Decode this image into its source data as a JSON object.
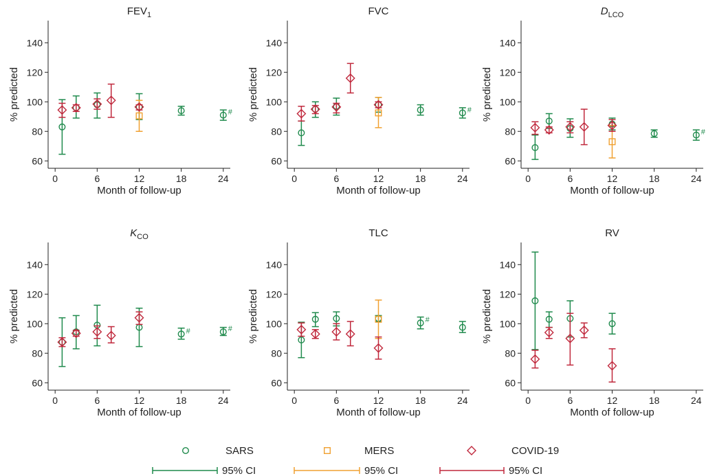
{
  "colors": {
    "SARS": "#1f8a4c",
    "MERS": "#f0a030",
    "COVID-19": "#c0283c",
    "axis": "#222222"
  },
  "legend": {
    "series": [
      "SARS",
      "MERS",
      "COVID-19"
    ],
    "ci_label": "95% CI"
  },
  "chart_data": [
    {
      "type": "scatter",
      "title": "FEV1",
      "title_main": "FEV",
      "title_sub": "1",
      "title_italic": false,
      "xlabel": "Month of follow-up",
      "ylabel": "% predicted",
      "xlim": [
        -1,
        25
      ],
      "ylim": [
        55,
        155
      ],
      "xticks": [
        0,
        6,
        12,
        18,
        24
      ],
      "yticks": [
        60,
        80,
        100,
        120,
        140
      ],
      "series": [
        {
          "name": "SARS",
          "marker": "circle",
          "points": [
            {
              "x": 1,
              "y": 83,
              "lo": 64.5,
              "hi": 101.5
            },
            {
              "x": 3,
              "y": 96,
              "lo": 89,
              "hi": 104
            },
            {
              "x": 6,
              "y": 98,
              "lo": 89,
              "hi": 106
            },
            {
              "x": 12,
              "y": 96.5,
              "lo": 88,
              "hi": 105.5
            },
            {
              "x": 18,
              "y": 94,
              "lo": 91,
              "hi": 97
            },
            {
              "x": 24,
              "y": 91,
              "lo": 87.5,
              "hi": 94.5,
              "note": "#"
            }
          ]
        },
        {
          "name": "MERS",
          "marker": "square",
          "points": [
            {
              "x": 12,
              "y": 90.5,
              "lo": 80,
              "hi": 101
            }
          ]
        },
        {
          "name": "COVID-19",
          "marker": "diamond",
          "points": [
            {
              "x": 1,
              "y": 94.5,
              "lo": 89.5,
              "hi": 99
            },
            {
              "x": 3,
              "y": 96,
              "lo": 93.5,
              "hi": 98
            },
            {
              "x": 6,
              "y": 98.5,
              "lo": 95,
              "hi": 102
            },
            {
              "x": 8,
              "y": 101,
              "lo": 89.5,
              "hi": 112
            },
            {
              "x": 12,
              "y": 96.5,
              "lo": 94.5,
              "hi": 98
            }
          ]
        }
      ]
    },
    {
      "type": "scatter",
      "title": "FVC",
      "title_main": "FVC",
      "title_sub": "",
      "title_italic": false,
      "xlabel": "Month of follow-up",
      "ylabel": "% predicted",
      "xlim": [
        -1,
        25
      ],
      "ylim": [
        55,
        155
      ],
      "xticks": [
        0,
        6,
        12,
        18,
        24
      ],
      "yticks": [
        60,
        80,
        100,
        120,
        140
      ],
      "series": [
        {
          "name": "SARS",
          "marker": "circle",
          "points": [
            {
              "x": 1,
              "y": 79,
              "lo": 70.5,
              "hi": 87
            },
            {
              "x": 3,
              "y": 95,
              "lo": 89.5,
              "hi": 100
            },
            {
              "x": 6,
              "y": 97,
              "lo": 91,
              "hi": 102.5
            },
            {
              "x": 12,
              "y": 98,
              "lo": 93,
              "hi": 103
            },
            {
              "x": 18,
              "y": 94.5,
              "lo": 91,
              "hi": 98
            },
            {
              "x": 24,
              "y": 92.5,
              "lo": 89,
              "hi": 96,
              "note": "#"
            }
          ]
        },
        {
          "name": "MERS",
          "marker": "square",
          "points": [
            {
              "x": 12,
              "y": 92.5,
              "lo": 82.5,
              "hi": 103
            }
          ]
        },
        {
          "name": "COVID-19",
          "marker": "diamond",
          "points": [
            {
              "x": 1,
              "y": 92,
              "lo": 87,
              "hi": 97
            },
            {
              "x": 3,
              "y": 95,
              "lo": 92,
              "hi": 97.5
            },
            {
              "x": 6,
              "y": 96.5,
              "lo": 92.5,
              "hi": 99
            },
            {
              "x": 8,
              "y": 116,
              "lo": 106,
              "hi": 126
            },
            {
              "x": 12,
              "y": 98,
              "lo": 96,
              "hi": 100
            }
          ]
        }
      ]
    },
    {
      "type": "scatter",
      "title": "DLCO",
      "title_main": "D",
      "title_sub": "LCO",
      "title_italic": true,
      "xlabel": "Month of follow-up",
      "ylabel": "% predicted",
      "xlim": [
        -1,
        25
      ],
      "ylim": [
        55,
        155
      ],
      "xticks": [
        0,
        6,
        12,
        18,
        24
      ],
      "yticks": [
        60,
        80,
        100,
        120,
        140
      ],
      "series": [
        {
          "name": "SARS",
          "marker": "circle",
          "points": [
            {
              "x": 1,
              "y": 69,
              "lo": 61,
              "hi": 77.5
            },
            {
              "x": 3,
              "y": 87,
              "lo": 82,
              "hi": 92
            },
            {
              "x": 6,
              "y": 82,
              "lo": 76,
              "hi": 88.5
            },
            {
              "x": 12,
              "y": 85,
              "lo": 81,
              "hi": 89
            },
            {
              "x": 18,
              "y": 78.5,
              "lo": 76,
              "hi": 81
            },
            {
              "x": 24,
              "y": 77.5,
              "lo": 74,
              "hi": 81,
              "note": "#"
            }
          ]
        },
        {
          "name": "MERS",
          "marker": "square",
          "points": [
            {
              "x": 12,
              "y": 73,
              "lo": 62,
              "hi": 84
            }
          ]
        },
        {
          "name": "COVID-19",
          "marker": "diamond",
          "points": [
            {
              "x": 1,
              "y": 82.5,
              "lo": 78,
              "hi": 86.5
            },
            {
              "x": 3,
              "y": 81,
              "lo": 79,
              "hi": 83
            },
            {
              "x": 6,
              "y": 83,
              "lo": 79,
              "hi": 86.5
            },
            {
              "x": 8,
              "y": 83,
              "lo": 71,
              "hi": 95
            },
            {
              "x": 12,
              "y": 84,
              "lo": 80,
              "hi": 88
            }
          ]
        }
      ]
    },
    {
      "type": "scatter",
      "title": "KCO",
      "title_main": "K",
      "title_sub": "CO",
      "title_italic": true,
      "xlabel": "Month of follow-up",
      "ylabel": "% predicted",
      "xlim": [
        -1,
        25
      ],
      "ylim": [
        55,
        155
      ],
      "xticks": [
        0,
        6,
        12,
        18,
        24
      ],
      "yticks": [
        60,
        80,
        100,
        120,
        140
      ],
      "series": [
        {
          "name": "SARS",
          "marker": "circle",
          "points": [
            {
              "x": 1,
              "y": 87.5,
              "lo": 71,
              "hi": 104
            },
            {
              "x": 3,
              "y": 94.5,
              "lo": 83,
              "hi": 105.5
            },
            {
              "x": 6,
              "y": 99,
              "lo": 85,
              "hi": 112.5
            },
            {
              "x": 12,
              "y": 97.5,
              "lo": 84.5,
              "hi": 110.5
            },
            {
              "x": 18,
              "y": 93,
              "lo": 89.5,
              "hi": 97,
              "note": "#"
            },
            {
              "x": 24,
              "y": 94.5,
              "lo": 92,
              "hi": 97.5,
              "note": "#"
            }
          ]
        },
        {
          "name": "COVID-19",
          "marker": "diamond",
          "points": [
            {
              "x": 1,
              "y": 87.5,
              "lo": 84.5,
              "hi": 90.5
            },
            {
              "x": 3,
              "y": 93.5,
              "lo": 91.5,
              "hi": 95.5
            },
            {
              "x": 6,
              "y": 94.5,
              "lo": 90,
              "hi": 98.5
            },
            {
              "x": 8,
              "y": 92,
              "lo": 87,
              "hi": 98
            },
            {
              "x": 12,
              "y": 104,
              "lo": 99.5,
              "hi": 108
            }
          ]
        }
      ]
    },
    {
      "type": "scatter",
      "title": "TLC",
      "title_main": "TLC",
      "title_sub": "",
      "title_italic": false,
      "xlabel": "Month of follow-up",
      "ylabel": "% predicted",
      "xlim": [
        -1,
        25
      ],
      "ylim": [
        55,
        155
      ],
      "xticks": [
        0,
        6,
        12,
        18,
        24
      ],
      "yticks": [
        60,
        80,
        100,
        120,
        140
      ],
      "series": [
        {
          "name": "SARS",
          "marker": "circle",
          "points": [
            {
              "x": 1,
              "y": 89,
              "lo": 77,
              "hi": 101
            },
            {
              "x": 3,
              "y": 103,
              "lo": 98,
              "hi": 107.5
            },
            {
              "x": 6,
              "y": 103.5,
              "lo": 98.5,
              "hi": 108
            },
            {
              "x": 12,
              "y": 103.5,
              "lo": 101.5,
              "hi": 105.5
            },
            {
              "x": 18,
              "y": 100.5,
              "lo": 96.5,
              "hi": 104.5,
              "note": "#"
            },
            {
              "x": 24,
              "y": 97.5,
              "lo": 94,
              "hi": 101.5
            }
          ]
        },
        {
          "name": "MERS",
          "marker": "square",
          "points": [
            {
              "x": 12,
              "y": 103,
              "lo": 90,
              "hi": 116
            }
          ]
        },
        {
          "name": "COVID-19",
          "marker": "diamond",
          "points": [
            {
              "x": 1,
              "y": 96,
              "lo": 91.5,
              "hi": 100.5
            },
            {
              "x": 3,
              "y": 93,
              "lo": 90,
              "hi": 96
            },
            {
              "x": 6,
              "y": 94.5,
              "lo": 89,
              "hi": 100
            },
            {
              "x": 8,
              "y": 93,
              "lo": 85,
              "hi": 101.5
            },
            {
              "x": 12,
              "y": 83.5,
              "lo": 76,
              "hi": 91
            }
          ]
        }
      ]
    },
    {
      "type": "scatter",
      "title": "RV",
      "title_main": "RV",
      "title_sub": "",
      "title_italic": false,
      "xlabel": "Month of follow-up",
      "ylabel": "% predicted",
      "xlim": [
        -1,
        25
      ],
      "ylim": [
        55,
        155
      ],
      "xticks": [
        0,
        6,
        12,
        18,
        24
      ],
      "yticks": [
        60,
        80,
        100,
        120,
        140
      ],
      "series": [
        {
          "name": "SARS",
          "marker": "circle",
          "points": [
            {
              "x": 1,
              "y": 115.5,
              "lo": 82.5,
              "hi": 148.5
            },
            {
              "x": 3,
              "y": 103,
              "lo": 97.5,
              "hi": 108
            },
            {
              "x": 6,
              "y": 103.5,
              "lo": 91,
              "hi": 115.5
            },
            {
              "x": 12,
              "y": 100,
              "lo": 93,
              "hi": 107
            }
          ]
        },
        {
          "name": "COVID-19",
          "marker": "diamond",
          "points": [
            {
              "x": 1,
              "y": 76,
              "lo": 70,
              "hi": 82
            },
            {
              "x": 3,
              "y": 94,
              "lo": 90,
              "hi": 97.5
            },
            {
              "x": 6,
              "y": 90,
              "lo": 72,
              "hi": 107
            },
            {
              "x": 8,
              "y": 95.5,
              "lo": 90.5,
              "hi": 100.5
            },
            {
              "x": 12,
              "y": 71.5,
              "lo": 60.5,
              "hi": 83
            }
          ]
        }
      ]
    }
  ]
}
